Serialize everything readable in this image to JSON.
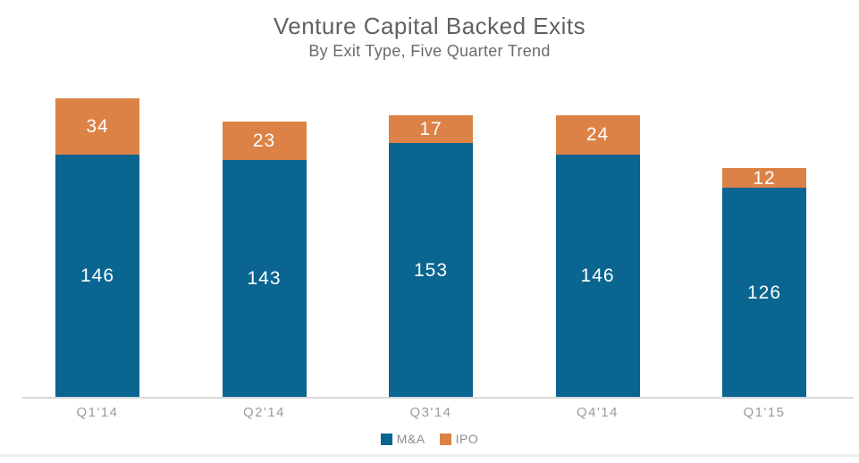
{
  "header": {
    "title": "Venture Capital Backed Exits",
    "subtitle": "By Exit Type, Five Quarter Trend"
  },
  "chart_data": {
    "type": "bar",
    "stacked": true,
    "title": "Venture Capital Backed Exits",
    "subtitle": "By Exit Type, Five Quarter Trend",
    "categories": [
      "Q1'14",
      "Q2'14",
      "Q3'14",
      "Q4'14",
      "Q1'15"
    ],
    "series": [
      {
        "name": "M&A",
        "color": "#0a6591",
        "values": [
          146,
          143,
          153,
          146,
          126
        ]
      },
      {
        "name": "IPO",
        "color": "#dd8246",
        "values": [
          34,
          23,
          17,
          24,
          12
        ]
      }
    ],
    "totals": [
      180,
      166,
      170,
      170,
      138
    ],
    "xlabel": "",
    "ylabel": "",
    "ylim": [
      0,
      190
    ],
    "grid": false,
    "y_axis_visible": false,
    "data_labels": true,
    "data_label_color": "#ffffff",
    "legend_position": "bottom"
  },
  "colors": {
    "ma_blue": "#0a6591",
    "ipo_orange": "#dd8246",
    "title_gray": "#616161",
    "axis_label_gray": "#9b9b9b",
    "axis_line_gray": "#d9d9d9",
    "background": "#ffffff"
  }
}
